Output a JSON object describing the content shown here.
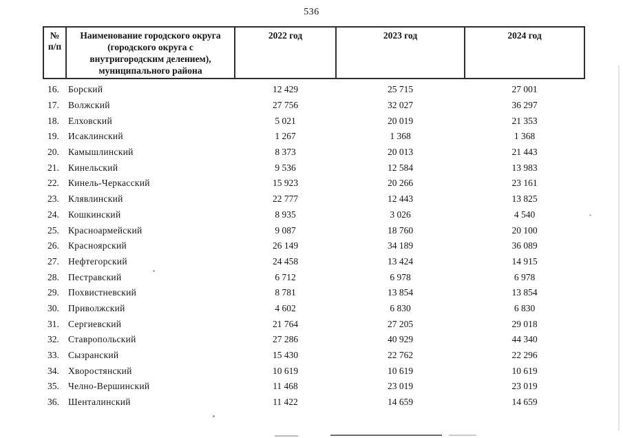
{
  "page": {
    "number": "536"
  },
  "table": {
    "header": {
      "num_line1": "№",
      "num_line2": "п/п",
      "name_lines": [
        "Наименование городского округа",
        "(городского округа с",
        "внутригородским делением),",
        "муниципального района"
      ],
      "year_2022": "2022 год",
      "year_2023": "2023 год",
      "year_2024": "2024 год"
    },
    "rows": [
      {
        "num": "16.",
        "name": "Борский",
        "y2022": "12 429",
        "y2023": "25 715",
        "y2024": "27 001"
      },
      {
        "num": "17.",
        "name": "Волжский",
        "y2022": "27 756",
        "y2023": "32 027",
        "y2024": "36 297"
      },
      {
        "num": "18.",
        "name": "Елховский",
        "y2022": "5 021",
        "y2023": "20 019",
        "y2024": "21 353"
      },
      {
        "num": "19.",
        "name": "Исаклинский",
        "y2022": "1 267",
        "y2023": "1 368",
        "y2024": "1 368"
      },
      {
        "num": "20.",
        "name": "Камышлинский",
        "y2022": "8 373",
        "y2023": "20 013",
        "y2024": "21 443"
      },
      {
        "num": "21.",
        "name": "Кинельский",
        "y2022": "9 536",
        "y2023": "12 584",
        "y2024": "13 983"
      },
      {
        "num": "22.",
        "name": "Кинель-Черкасский",
        "y2022": "15 923",
        "y2023": "20 266",
        "y2024": "23 161"
      },
      {
        "num": "23.",
        "name": "Клявлинский",
        "y2022": "22 777",
        "y2023": "12 443",
        "y2024": "13 825"
      },
      {
        "num": "24.",
        "name": "Кошкинский",
        "y2022": "8 935",
        "y2023": "3 026",
        "y2024": "4 540"
      },
      {
        "num": "25.",
        "name": "Красноармейский",
        "y2022": "9 087",
        "y2023": "18 760",
        "y2024": "20 100"
      },
      {
        "num": "26.",
        "name": "Красноярский",
        "y2022": "26 149",
        "y2023": "34 189",
        "y2024": "36 089"
      },
      {
        "num": "27.",
        "name": "Нефтегорский",
        "y2022": "24 458",
        "y2023": "13 424",
        "y2024": "14 915"
      },
      {
        "num": "28.",
        "name": "Пестравский",
        "y2022": "6 712",
        "y2023": "6 978",
        "y2024": "6 978"
      },
      {
        "num": "29.",
        "name": "Похвистневский",
        "y2022": "8 781",
        "y2023": "13 854",
        "y2024": "13 854"
      },
      {
        "num": "30.",
        "name": "Приволжский",
        "y2022": "4 602",
        "y2023": "6 830",
        "y2024": "6 830"
      },
      {
        "num": "31.",
        "name": "Сергиевский",
        "y2022": "21 764",
        "y2023": "27 205",
        "y2024": "29 018"
      },
      {
        "num": "32.",
        "name": "Ставропольский",
        "y2022": "27 286",
        "y2023": "40 929",
        "y2024": "44 340"
      },
      {
        "num": "33.",
        "name": "Сызранский",
        "y2022": "15 430",
        "y2023": "22 762",
        "y2024": "22 296"
      },
      {
        "num": "34.",
        "name": "Хворостянский",
        "y2022": "10 619",
        "y2023": "10 619",
        "y2024": "10 619"
      },
      {
        "num": "35.",
        "name": "Челно-Вершинский",
        "y2022": "11 468",
        "y2023": "23 019",
        "y2024": "23 019"
      },
      {
        "num": "36.",
        "name": "Шенталинский",
        "y2022": "11 422",
        "y2023": "14 659",
        "y2024": "14 659"
      }
    ]
  }
}
